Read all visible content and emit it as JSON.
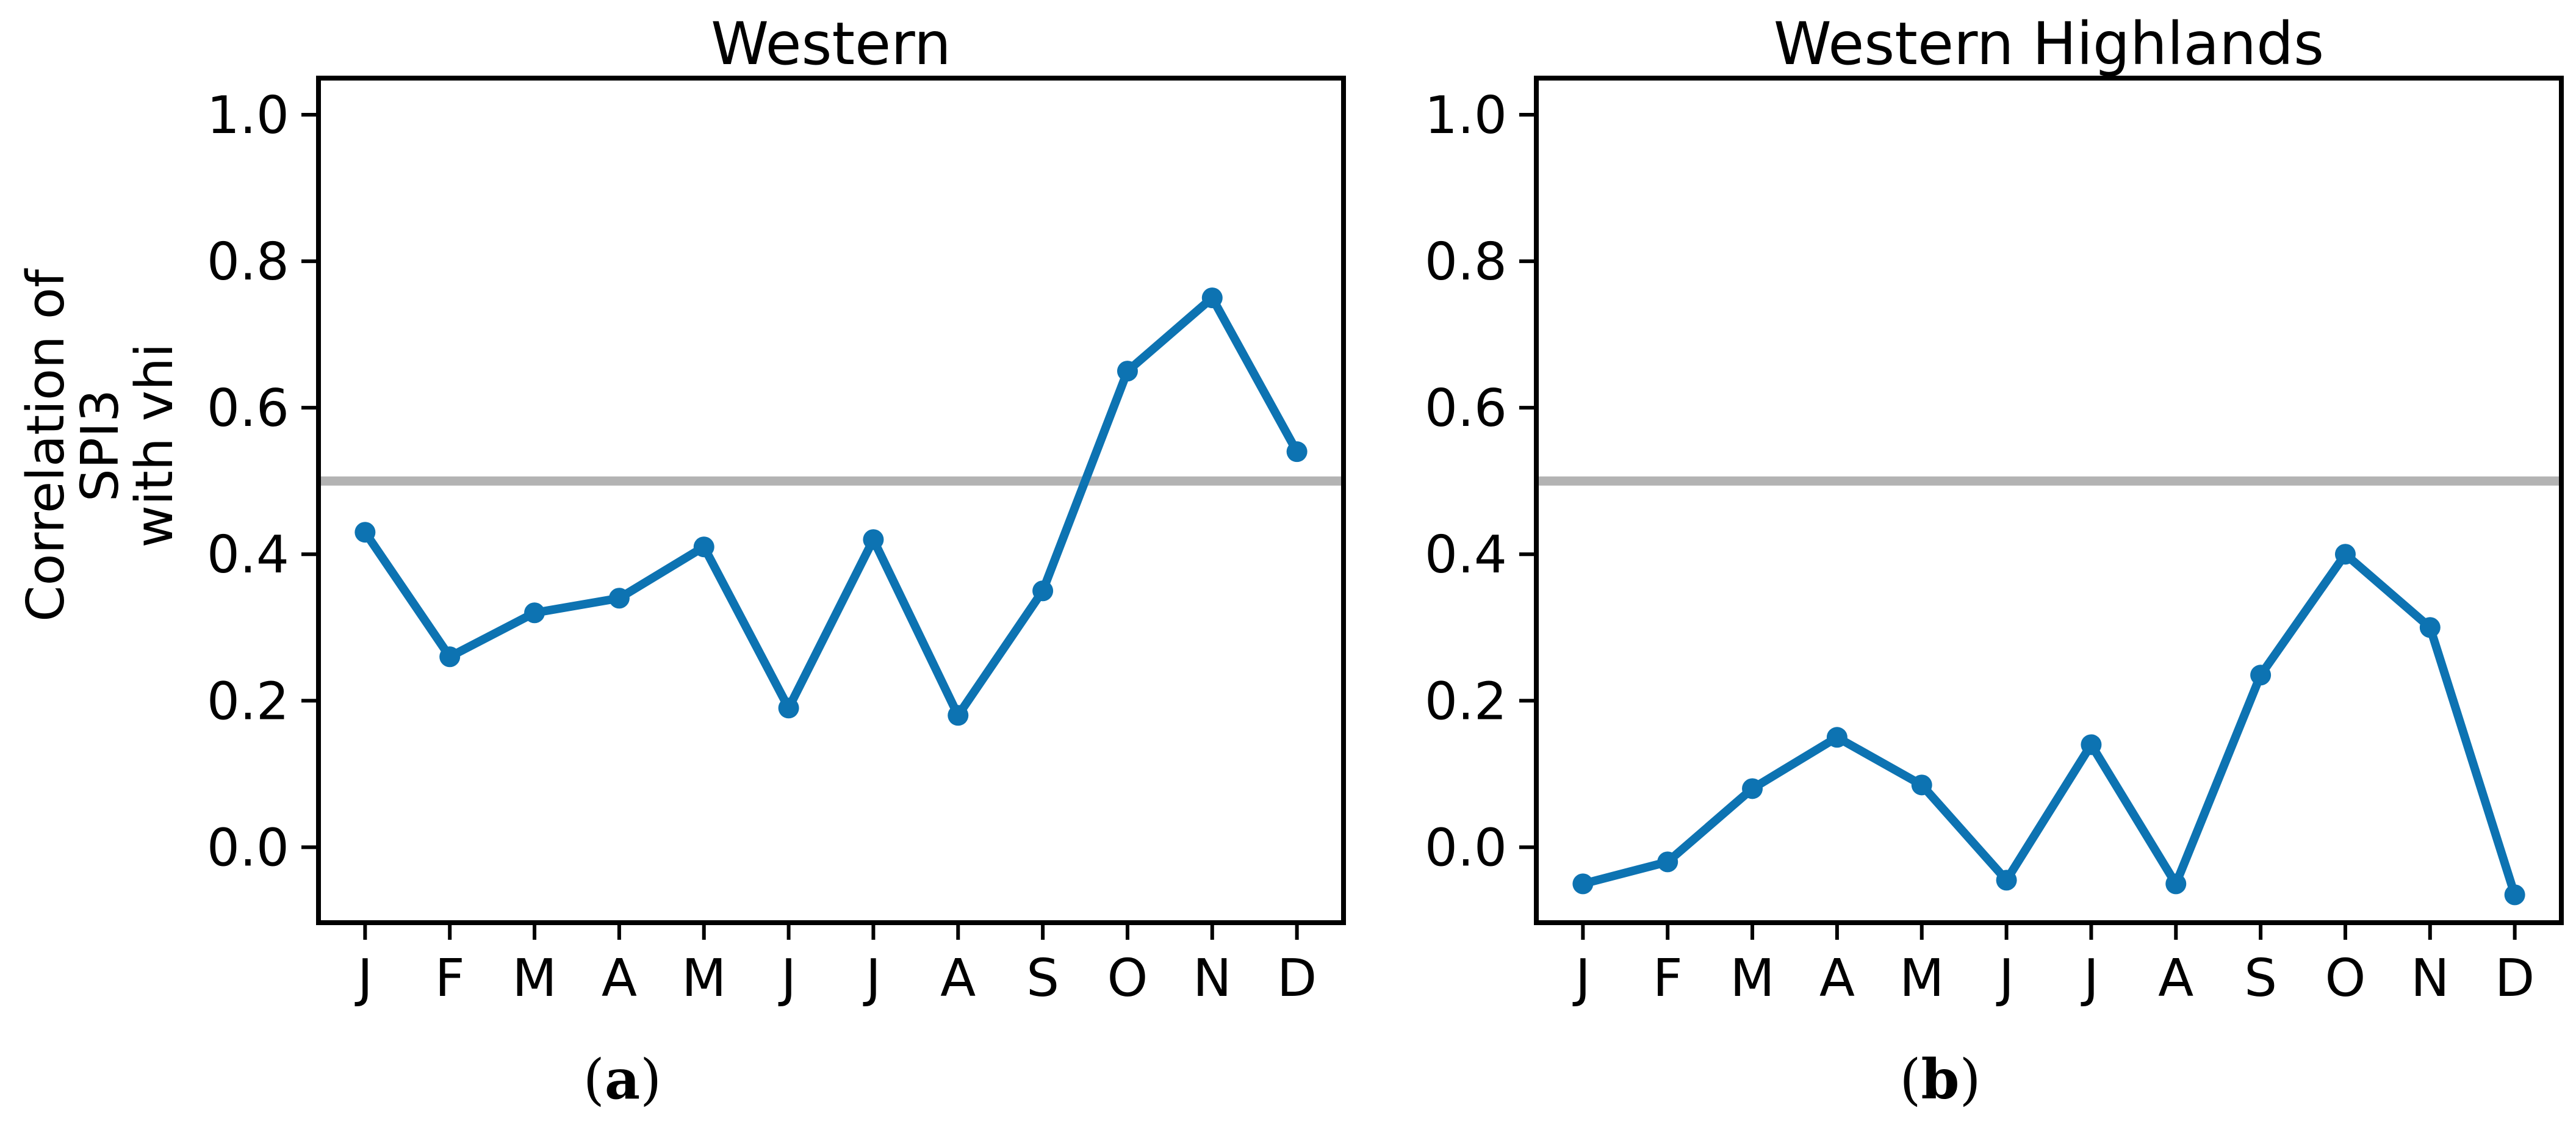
{
  "figure": {
    "background": "#ffffff",
    "series_color": "#0d73b2",
    "reference_line_color": "#b3b3b3",
    "axis_color": "#000000",
    "text_color": "#000000",
    "paren_open": "(",
    "paren_close": ")"
  },
  "chart_data": [
    {
      "type": "line",
      "title": "Western",
      "sublabel": "a",
      "ylabel_lines": [
        "Correlation of",
        "SPI3",
        "with vhi"
      ],
      "categories": [
        "J",
        "F",
        "M",
        "A",
        "M",
        "J",
        "J",
        "A",
        "S",
        "O",
        "N",
        "D"
      ],
      "values": [
        0.43,
        0.26,
        0.32,
        0.34,
        0.41,
        0.19,
        0.42,
        0.18,
        0.35,
        0.65,
        0.75,
        0.54
      ],
      "reference_line": 0.5,
      "yticks": [
        0.0,
        0.2,
        0.4,
        0.6,
        0.8,
        1.0
      ],
      "ytick_labels": [
        "0.0",
        "0.2",
        "0.4",
        "0.6",
        "0.8",
        "1.0"
      ],
      "ylim": [
        -0.103,
        1.05
      ],
      "xlim_margin": 0.55,
      "grid": false,
      "legend_position": "none"
    },
    {
      "type": "line",
      "title": "Western Highlands",
      "sublabel": "b",
      "ylabel_lines": [],
      "categories": [
        "J",
        "F",
        "M",
        "A",
        "M",
        "J",
        "J",
        "A",
        "S",
        "O",
        "N",
        "D"
      ],
      "values": [
        -0.05,
        -0.02,
        0.08,
        0.15,
        0.085,
        -0.045,
        0.14,
        -0.05,
        0.235,
        0.4,
        0.3,
        -0.065
      ],
      "reference_line": 0.5,
      "yticks": [
        0.0,
        0.2,
        0.4,
        0.6,
        0.8,
        1.0
      ],
      "ytick_labels": [
        "0.0",
        "0.2",
        "0.4",
        "0.6",
        "0.8",
        "1.0"
      ],
      "ylim": [
        -0.103,
        1.05
      ],
      "xlim_margin": 0.55,
      "grid": false,
      "legend_position": "none"
    }
  ]
}
